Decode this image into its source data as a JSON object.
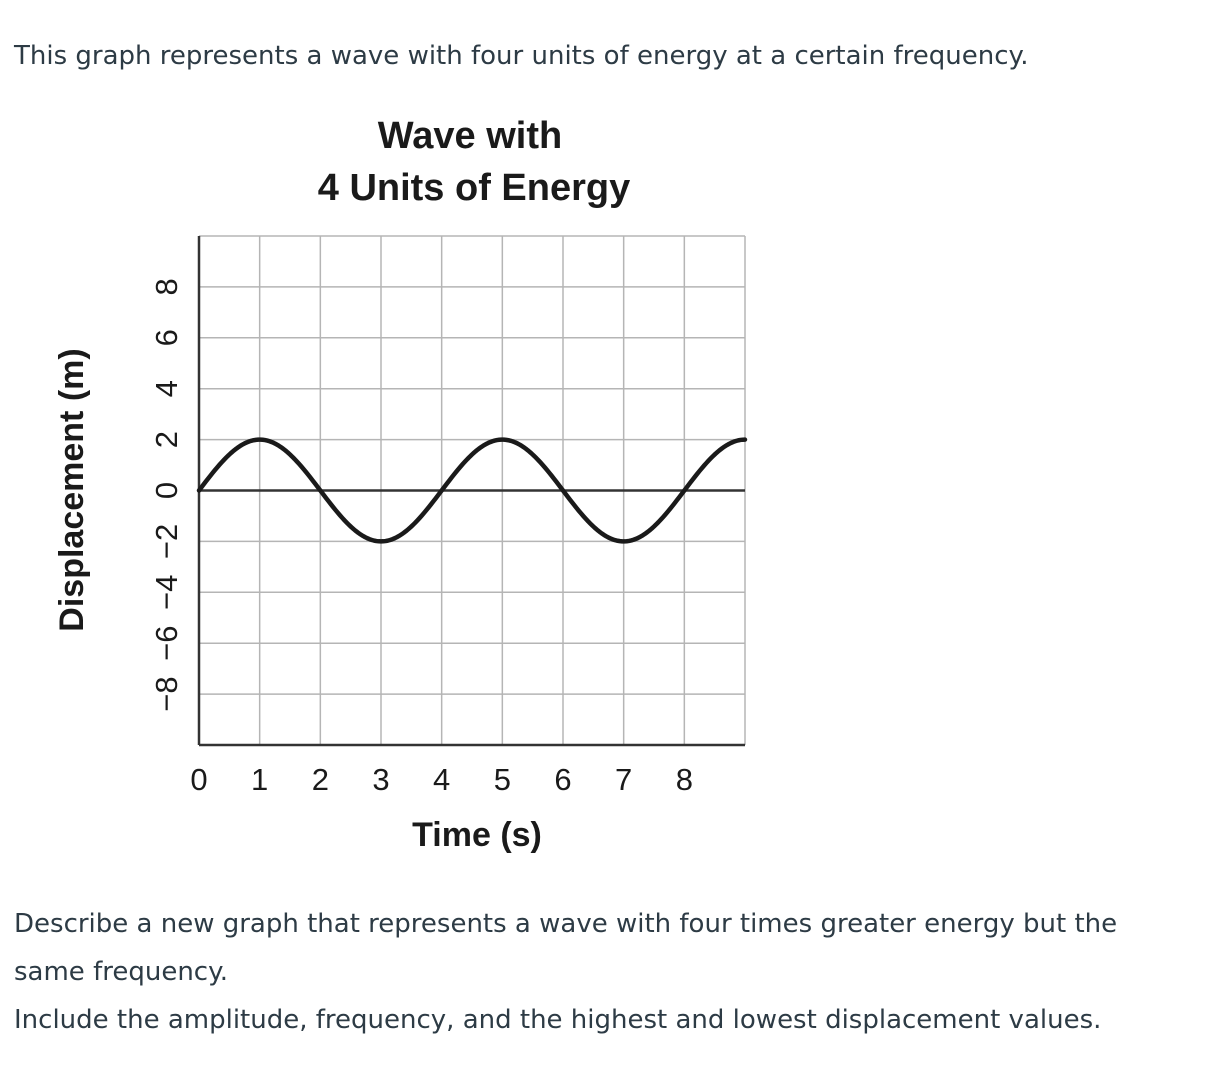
{
  "question": {
    "intro": "This graph represents a wave with four units of energy at a certain frequency.",
    "prompt_line1": "Describe a new graph that represents a wave with four times greater energy but the",
    "prompt_line2": "same frequency.",
    "prompt_line3": "Include the amplitude, frequency, and the highest and lowest displacement values."
  },
  "chart_data": {
    "type": "line",
    "title_line1": "Wave with",
    "title_line2": "4 Units of Energy",
    "xlabel": "Time (s)",
    "ylabel": "Displacement (m)",
    "xlim": [
      0,
      9
    ],
    "ylim": [
      -10,
      10
    ],
    "x_ticks": [
      0,
      1,
      2,
      3,
      4,
      5,
      6,
      7,
      8
    ],
    "y_ticks": [
      8,
      6,
      4,
      2,
      0,
      -2,
      -4,
      -6,
      -8
    ],
    "y_tick_labels": [
      "8",
      "6",
      "4",
      "2",
      "0",
      "−2",
      "−4",
      "−6",
      "−8"
    ],
    "grid": true,
    "series": [
      {
        "function": "sine",
        "amplitude": 2,
        "period": 4,
        "x_start": 0,
        "x_end": 9,
        "x": [
          0,
          1,
          2,
          3,
          4,
          5,
          6,
          7,
          8,
          9
        ],
        "y": [
          0,
          2,
          0,
          -2,
          0,
          2,
          0,
          -2,
          0,
          2
        ]
      }
    ],
    "colors": {
      "grid": "#b5b5b5",
      "axis": "#333333",
      "line": "#1a1a1a"
    }
  }
}
